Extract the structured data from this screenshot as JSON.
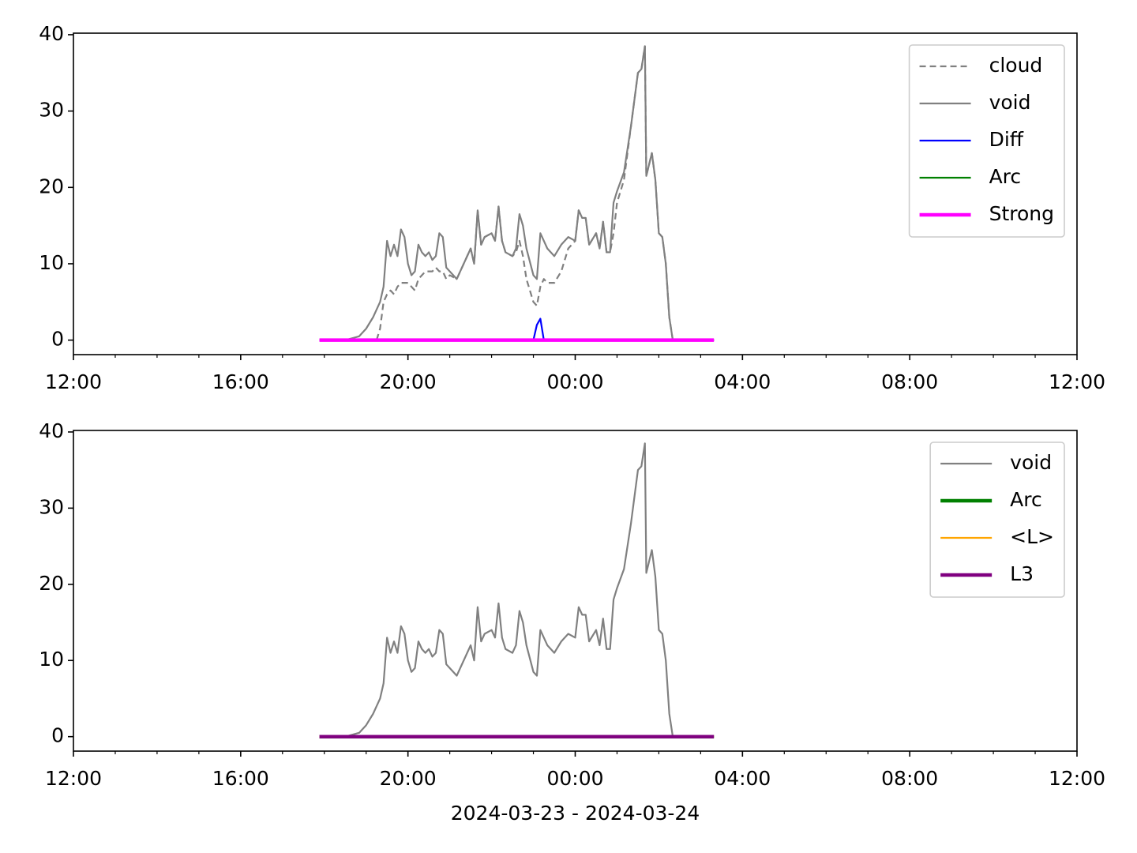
{
  "chart_data": [
    {
      "type": "line",
      "x": [
        353,
        360,
        390,
        410,
        420,
        430,
        435,
        440,
        445,
        450,
        455,
        460,
        465,
        470,
        475,
        480,
        485,
        490,
        495,
        500,
        505,
        510,
        515,
        520,
        525,
        530,
        535,
        540,
        550,
        560,
        570,
        575,
        580,
        585,
        590,
        600,
        605,
        610,
        615,
        620,
        630,
        635,
        640,
        645,
        650,
        660,
        665,
        670,
        675,
        680,
        690,
        700,
        710,
        720,
        725,
        730,
        735,
        740,
        750,
        755,
        760,
        765,
        770,
        775,
        780,
        790,
        800,
        810,
        815,
        820,
        822,
        830,
        835,
        840,
        845,
        850,
        855,
        860,
        870,
        919
      ],
      "xlim": [
        0,
        1440
      ],
      "xticks": [
        {
          "value": 0,
          "label": "12:00"
        },
        {
          "value": 240,
          "label": "16:00"
        },
        {
          "value": 480,
          "label": "20:00"
        },
        {
          "value": 720,
          "label": "00:00"
        },
        {
          "value": 960,
          "label": "04:00"
        },
        {
          "value": 1200,
          "label": "08:00"
        },
        {
          "value": 1440,
          "label": "12:00"
        }
      ],
      "xminorticks": [
        60,
        120,
        180,
        300,
        360,
        420,
        540,
        600,
        660,
        780,
        840,
        900,
        1020,
        1080,
        1140,
        1260,
        1320,
        1380
      ],
      "ylim": [
        -1.9,
        40.2
      ],
      "yticks": [
        0,
        10,
        20,
        30,
        40
      ],
      "legend": "upper right",
      "series": [
        {
          "name": "cloud",
          "color": "#808080",
          "dash": "dashed",
          "linewidth": 1,
          "values": [
            null,
            null,
            null,
            null,
            null,
            null,
            0,
            1.5,
            5,
            6,
            6.5,
            6,
            7,
            7.5,
            7.5,
            7.5,
            7,
            6.5,
            8,
            8.5,
            9,
            9,
            9,
            9.5,
            9,
            9,
            8,
            8.5,
            8,
            10,
            12,
            10,
            17,
            12.5,
            13.5,
            14,
            13,
            17.5,
            13,
            11.5,
            11,
            11.5,
            13,
            11,
            8,
            5,
            4.5,
            7,
            8,
            7.5,
            7.5,
            9,
            12,
            13,
            17,
            16,
            16,
            12.5,
            14,
            12,
            15.5,
            11.5,
            11.5,
            14,
            18,
            21,
            28,
            35,
            35.5,
            38.5,
            21.5,
            24.5,
            21,
            14,
            13.5,
            10,
            3,
            0,
            null,
            null
          ]
        },
        {
          "name": "void",
          "color": "#808080",
          "dash": "solid",
          "linewidth": 1,
          "values": [
            0,
            0,
            0,
            0.5,
            1.5,
            3,
            4,
            5,
            7,
            13,
            11,
            12.5,
            11,
            14.5,
            13.5,
            10,
            8.5,
            9,
            12.5,
            11.5,
            11,
            11.5,
            10.5,
            11,
            14,
            13.5,
            9.5,
            9,
            8,
            10,
            12,
            10,
            17,
            12.5,
            13.5,
            14,
            13,
            17.5,
            13,
            11.5,
            11,
            12,
            16.5,
            15,
            12,
            8.5,
            8,
            14,
            13,
            12,
            11,
            12.5,
            13.5,
            13,
            17,
            16,
            16,
            12.5,
            14,
            12,
            15.5,
            11.5,
            11.5,
            18,
            19.5,
            22,
            28,
            35,
            35.5,
            38.5,
            21.5,
            24.5,
            21,
            14,
            13.5,
            10,
            3,
            0,
            0,
            0
          ]
        },
        {
          "name": "Diff",
          "color": "#0000ff",
          "dash": "solid",
          "linewidth": 1,
          "values": [
            0,
            0,
            0,
            0,
            0,
            0,
            0,
            0,
            0,
            0,
            0,
            0,
            0,
            0,
            0,
            0,
            0,
            0,
            0,
            0,
            0,
            0,
            0,
            0,
            0,
            0,
            0,
            0,
            0,
            0,
            0,
            0,
            0,
            0,
            0,
            0,
            0,
            0,
            0,
            0,
            0,
            0,
            0,
            0,
            0,
            0,
            2,
            2.8,
            0,
            0,
            0,
            0,
            0,
            0,
            0,
            0,
            0,
            0,
            0,
            0,
            0,
            0,
            0,
            0,
            0,
            0,
            0,
            0,
            0,
            0,
            0,
            0,
            0,
            0,
            0,
            0,
            0,
            0,
            0,
            0
          ]
        },
        {
          "name": "Arc",
          "color": "#008000",
          "dash": "solid",
          "linewidth": 1,
          "values": [
            0,
            0,
            0,
            0,
            0,
            0,
            0,
            0,
            0,
            0,
            0,
            0,
            0,
            0,
            0,
            0,
            0,
            0,
            0,
            0,
            0,
            0,
            0,
            0,
            0,
            0,
            0,
            0,
            0,
            0,
            0,
            0,
            0,
            0,
            0,
            0,
            0,
            0,
            0,
            0,
            0,
            0,
            0,
            0,
            0,
            0,
            0,
            0,
            0,
            0,
            0,
            0,
            0,
            0,
            0,
            0,
            0,
            0,
            0,
            0,
            0,
            0,
            0,
            0,
            0,
            0,
            0,
            0,
            0,
            0,
            0,
            0,
            0,
            0,
            0,
            0,
            0,
            0,
            0,
            0
          ]
        },
        {
          "name": "Strong",
          "color": "#ff00ff",
          "dash": "solid",
          "linewidth": 2,
          "values": [
            0,
            0,
            0,
            0,
            0,
            0,
            0,
            0,
            0,
            0,
            0,
            0,
            0,
            0,
            0,
            0,
            0,
            0,
            0,
            0,
            0,
            0,
            0,
            0,
            0,
            0,
            0,
            0,
            0,
            0,
            0,
            0,
            0,
            0,
            0,
            0,
            0,
            0,
            0,
            0,
            0,
            0,
            0,
            0,
            0,
            0,
            0,
            0,
            0,
            0,
            0,
            0,
            0,
            0,
            0,
            0,
            0,
            0,
            0,
            0,
            0,
            0,
            0,
            0,
            0,
            0,
            0,
            0,
            0,
            0,
            0,
            0,
            0,
            0,
            0,
            0,
            0,
            0,
            0,
            0
          ]
        }
      ]
    },
    {
      "type": "line",
      "x": [
        353,
        360,
        390,
        410,
        420,
        430,
        435,
        440,
        445,
        450,
        455,
        460,
        465,
        470,
        475,
        480,
        485,
        490,
        495,
        500,
        505,
        510,
        515,
        520,
        525,
        530,
        535,
        540,
        550,
        560,
        570,
        575,
        580,
        585,
        590,
        600,
        605,
        610,
        615,
        620,
        630,
        635,
        640,
        645,
        650,
        660,
        665,
        670,
        675,
        680,
        690,
        700,
        710,
        720,
        725,
        730,
        735,
        740,
        750,
        755,
        760,
        765,
        770,
        775,
        780,
        790,
        800,
        810,
        815,
        820,
        822,
        830,
        835,
        840,
        845,
        850,
        855,
        860,
        870,
        919
      ],
      "xlim": [
        0,
        1440
      ],
      "xticks": [
        {
          "value": 0,
          "label": "12:00"
        },
        {
          "value": 240,
          "label": "16:00"
        },
        {
          "value": 480,
          "label": "20:00"
        },
        {
          "value": 720,
          "label": "00:00"
        },
        {
          "value": 960,
          "label": "04:00"
        },
        {
          "value": 1200,
          "label": "08:00"
        },
        {
          "value": 1440,
          "label": "12:00"
        }
      ],
      "xminorticks": [
        60,
        120,
        180,
        300,
        360,
        420,
        540,
        600,
        660,
        780,
        840,
        900,
        1020,
        1080,
        1140,
        1260,
        1320,
        1380
      ],
      "ylim": [
        -1.9,
        40.2
      ],
      "yticks": [
        0,
        10,
        20,
        30,
        40
      ],
      "legend": "upper right",
      "xlabel": "2024-03-23 - 2024-03-24",
      "series": [
        {
          "name": "void",
          "color": "#808080",
          "dash": "solid",
          "linewidth": 1,
          "values": [
            0,
            0,
            0,
            0.5,
            1.5,
            3,
            4,
            5,
            7,
            13,
            11,
            12.5,
            11,
            14.5,
            13.5,
            10,
            8.5,
            9,
            12.5,
            11.5,
            11,
            11.5,
            10.5,
            11,
            14,
            13.5,
            9.5,
            9,
            8,
            10,
            12,
            10,
            17,
            12.5,
            13.5,
            14,
            13,
            17.5,
            13,
            11.5,
            11,
            12,
            16.5,
            15,
            12,
            8.5,
            8,
            14,
            13,
            12,
            11,
            12.5,
            13.5,
            13,
            17,
            16,
            16,
            12.5,
            14,
            12,
            15.5,
            11.5,
            11.5,
            18,
            19.5,
            22,
            28,
            35,
            35.5,
            38.5,
            21.5,
            24.5,
            21,
            14,
            13.5,
            10,
            3,
            0,
            0,
            0
          ]
        },
        {
          "name": "Arc",
          "color": "#008000",
          "dash": "solid",
          "linewidth": 2,
          "values": [
            0,
            0,
            0,
            0,
            0,
            0,
            0,
            0,
            0,
            0,
            0,
            0,
            0,
            0,
            0,
            0,
            0,
            0,
            0,
            0,
            0,
            0,
            0,
            0,
            0,
            0,
            0,
            0,
            0,
            0,
            0,
            0,
            0,
            0,
            0,
            0,
            0,
            0,
            0,
            0,
            0,
            0,
            0,
            0,
            0,
            0,
            0,
            0,
            0,
            0,
            0,
            0,
            0,
            0,
            0,
            0,
            0,
            0,
            0,
            0,
            0,
            0,
            0,
            0,
            0,
            0,
            0,
            0,
            0,
            0,
            0,
            0,
            0,
            0,
            0,
            0,
            0,
            0,
            0,
            0
          ]
        },
        {
          "name": "<L>",
          "color": "#ffa500",
          "dash": "solid",
          "linewidth": 1,
          "values": [
            0,
            0,
            0,
            0,
            0,
            0,
            0,
            0,
            0,
            0,
            0,
            0,
            0,
            0,
            0,
            0,
            0,
            0,
            0,
            0,
            0,
            0,
            0,
            0,
            0,
            0,
            0,
            0,
            0,
            0,
            0,
            0,
            0,
            0,
            0,
            0,
            0,
            0,
            0,
            0,
            0,
            0,
            0,
            0,
            0,
            0,
            0,
            0,
            0,
            0,
            0,
            0,
            0,
            0,
            0,
            0,
            0,
            0,
            0,
            0,
            0,
            0,
            0,
            0,
            0,
            0,
            0,
            0,
            0,
            0,
            0,
            0,
            0,
            0,
            0,
            0,
            0,
            0,
            0,
            0
          ]
        },
        {
          "name": "L3",
          "color": "#800080",
          "dash": "solid",
          "linewidth": 2,
          "values": [
            0,
            0,
            0,
            0,
            0,
            0,
            0,
            0,
            0,
            0,
            0,
            0,
            0,
            0,
            0,
            0,
            0,
            0,
            0,
            0,
            0,
            0,
            0,
            0,
            0,
            0,
            0,
            0,
            0,
            0,
            0,
            0,
            0,
            0,
            0,
            0,
            0,
            0,
            0,
            0,
            0,
            0,
            0,
            0,
            0,
            0,
            0,
            0,
            0,
            0,
            0,
            0,
            0,
            0,
            0,
            0,
            0,
            0,
            0,
            0,
            0,
            0,
            0,
            0,
            0,
            0,
            0,
            0,
            0,
            0,
            0,
            0,
            0,
            0,
            0,
            0,
            0,
            0,
            0,
            0
          ]
        }
      ]
    }
  ]
}
